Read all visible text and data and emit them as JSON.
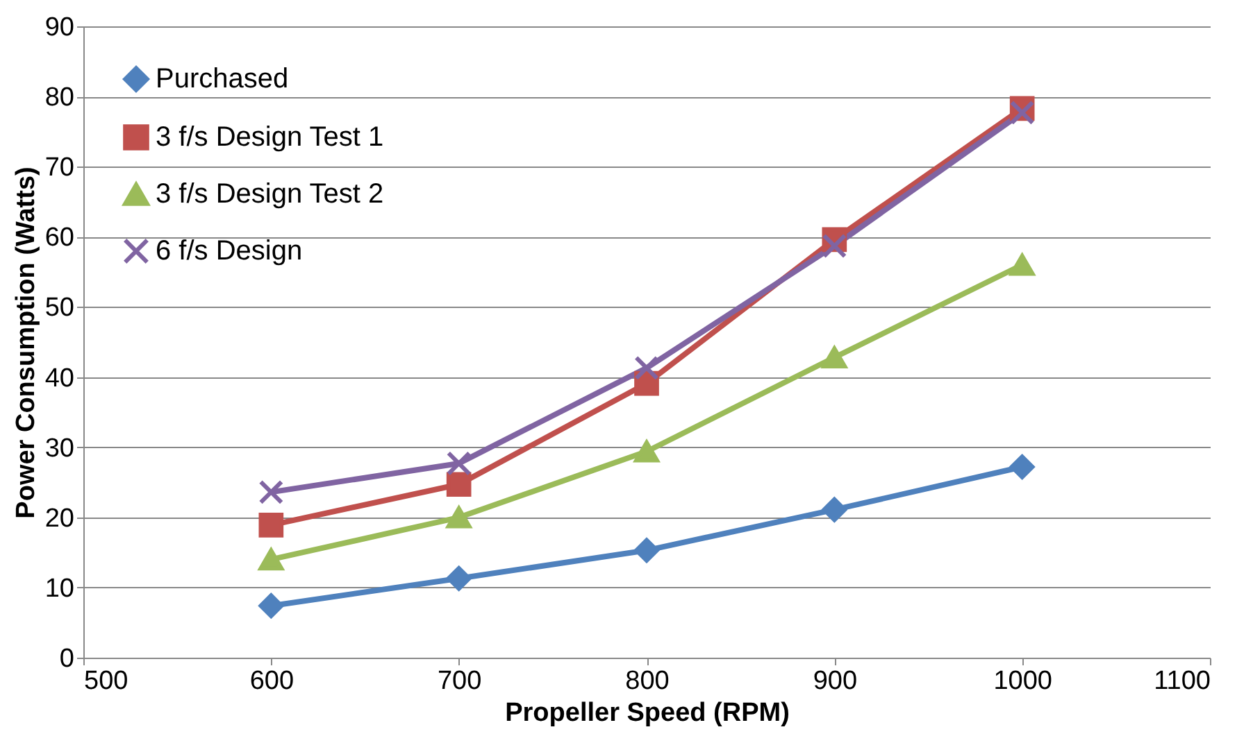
{
  "chart_data": {
    "type": "line",
    "xlabel": "Propeller Speed (RPM)",
    "ylabel": "Power Consumption (Watts)",
    "x": [
      600,
      700,
      800,
      900,
      1000
    ],
    "series": [
      {
        "name": "Purchased",
        "color": "#4f81bd",
        "marker": "diamond",
        "values": [
          7.4,
          11.3,
          15.3,
          21.1,
          27.2
        ]
      },
      {
        "name": "3 f/s Design Test 1",
        "color": "#c0504d",
        "marker": "square",
        "values": [
          18.9,
          24.7,
          39.1,
          59.6,
          78.3
        ]
      },
      {
        "name": "3 f/s Design Test 2",
        "color": "#9bbb59",
        "marker": "triangle",
        "values": [
          14.0,
          20.0,
          29.4,
          42.8,
          56.0
        ]
      },
      {
        "name": "6 f/s Design",
        "color": "#8064a2",
        "marker": "cross",
        "values": [
          23.6,
          27.7,
          41.3,
          58.7,
          77.7
        ]
      }
    ],
    "xlim": [
      500,
      1100
    ],
    "xticks": [
      500,
      600,
      700,
      800,
      900,
      1000,
      1100
    ],
    "ylim": [
      0,
      90
    ],
    "yticks": [
      0,
      10,
      20,
      30,
      40,
      50,
      60,
      70,
      80,
      90
    ],
    "grid": "y",
    "legend": "top left",
    "line_style": "solid"
  }
}
